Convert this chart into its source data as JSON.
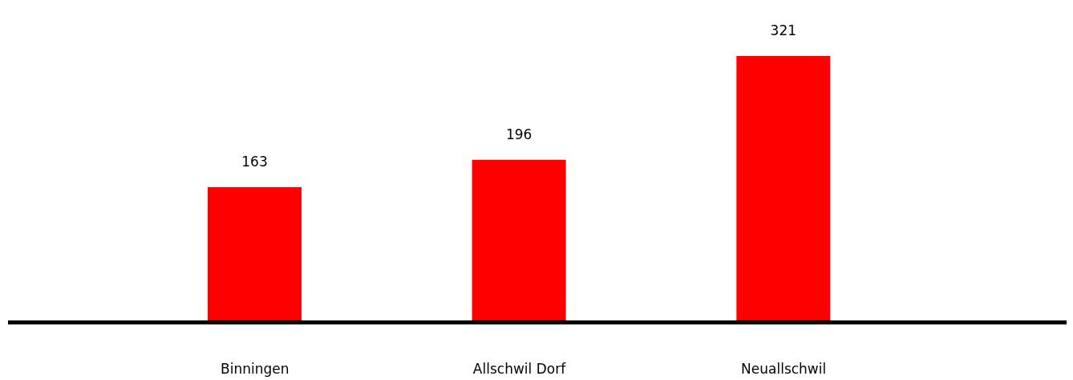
{
  "chart_data": {
    "type": "bar",
    "categories": [
      "Binningen",
      "Allschwil Dorf",
      "Neuallschwil"
    ],
    "values": [
      163,
      196,
      321
    ],
    "color": "#ff0000",
    "data_labels": true,
    "grid": false,
    "legend": false
  }
}
